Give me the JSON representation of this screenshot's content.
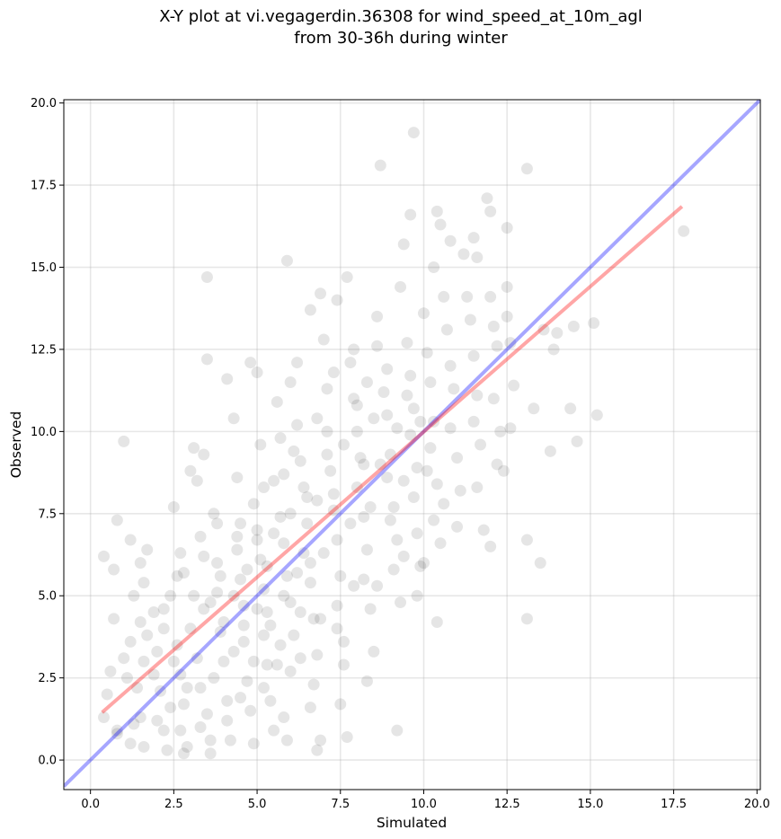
{
  "chart_data": {
    "type": "scatter",
    "title": "X-Y plot at vi.vegagerdin.36308 for wind_speed_at_10m_agl",
    "subtitle": "from 30-36h during winter",
    "xlabel": "Simulated",
    "ylabel": "Observed",
    "xlim": [
      -0.8,
      20.1
    ],
    "ylim": [
      -0.9,
      20.1
    ],
    "x_ticks": [
      "0.0",
      "2.5",
      "5.0",
      "7.5",
      "10.0",
      "12.5",
      "15.0",
      "17.5",
      "20.0"
    ],
    "y_ticks": [
      "0.0",
      "2.5",
      "5.0",
      "7.5",
      "10.0",
      "12.5",
      "15.0",
      "17.5",
      "20.0"
    ],
    "grid": true,
    "point_color": "#000000",
    "point_alpha": 0.1,
    "points": [
      [
        0.4,
        6.2
      ],
      [
        0.7,
        5.8
      ],
      [
        0.8,
        7.3
      ],
      [
        0.7,
        4.3
      ],
      [
        0.6,
        2.7
      ],
      [
        0.5,
        2.0
      ],
      [
        0.4,
        1.3
      ],
      [
        0.8,
        0.9
      ],
      [
        0.8,
        0.8
      ],
      [
        1.0,
        3.1
      ],
      [
        1.1,
        2.5
      ],
      [
        1.2,
        3.6
      ],
      [
        1.3,
        1.1
      ],
      [
        1.2,
        0.5
      ],
      [
        1.5,
        1.3
      ],
      [
        1.6,
        0.4
      ],
      [
        1.4,
        2.2
      ],
      [
        1.6,
        3.0
      ],
      [
        1.7,
        3.8
      ],
      [
        1.5,
        4.2
      ],
      [
        1.3,
        5.0
      ],
      [
        1.6,
        5.4
      ],
      [
        1.7,
        6.4
      ],
      [
        1.5,
        6.0
      ],
      [
        1.2,
        6.7
      ],
      [
        1.0,
        9.7
      ],
      [
        1.9,
        4.5
      ],
      [
        2.0,
        3.3
      ],
      [
        2.1,
        2.1
      ],
      [
        2.0,
        1.2
      ],
      [
        2.2,
        0.9
      ],
      [
        2.3,
        0.3
      ],
      [
        2.4,
        5.0
      ],
      [
        2.5,
        7.7
      ],
      [
        2.2,
        4.0
      ],
      [
        2.6,
        3.5
      ],
      [
        2.7,
        2.6
      ],
      [
        2.8,
        1.7
      ],
      [
        2.7,
        0.9
      ],
      [
        2.8,
        0.2
      ],
      [
        2.9,
        0.4
      ],
      [
        2.8,
        5.7
      ],
      [
        2.7,
        6.3
      ],
      [
        3.0,
        8.8
      ],
      [
        3.1,
        9.5
      ],
      [
        3.2,
        8.5
      ],
      [
        3.3,
        6.8
      ],
      [
        3.4,
        4.6
      ],
      [
        3.2,
        3.1
      ],
      [
        3.3,
        2.2
      ],
      [
        3.5,
        1.4
      ],
      [
        3.6,
        0.6
      ],
      [
        3.6,
        0.2
      ],
      [
        3.4,
        9.3
      ],
      [
        3.5,
        12.2
      ],
      [
        3.5,
        14.7
      ],
      [
        3.7,
        7.5
      ],
      [
        3.8,
        6.0
      ],
      [
        3.8,
        5.1
      ],
      [
        3.9,
        3.9
      ],
      [
        4.0,
        3.0
      ],
      [
        4.1,
        1.8
      ],
      [
        4.2,
        0.6
      ],
      [
        4.1,
        11.6
      ],
      [
        4.3,
        10.4
      ],
      [
        4.4,
        8.6
      ],
      [
        4.5,
        7.2
      ],
      [
        4.4,
        6.4
      ],
      [
        4.5,
        5.5
      ],
      [
        4.6,
        4.7
      ],
      [
        4.6,
        3.6
      ],
      [
        4.7,
        2.4
      ],
      [
        4.8,
        1.5
      ],
      [
        4.9,
        0.5
      ],
      [
        4.8,
        12.1
      ],
      [
        5.0,
        11.8
      ],
      [
        5.1,
        9.6
      ],
      [
        5.2,
        8.3
      ],
      [
        5.0,
        7.0
      ],
      [
        5.1,
        6.1
      ],
      [
        5.2,
        5.2
      ],
      [
        5.3,
        4.5
      ],
      [
        5.2,
        3.8
      ],
      [
        5.3,
        2.9
      ],
      [
        5.4,
        1.8
      ],
      [
        5.5,
        0.9
      ],
      [
        5.6,
        10.9
      ],
      [
        5.7,
        9.8
      ],
      [
        5.8,
        8.7
      ],
      [
        5.7,
        7.4
      ],
      [
        5.8,
        6.6
      ],
      [
        5.9,
        5.6
      ],
      [
        6.0,
        4.8
      ],
      [
        6.1,
        3.8
      ],
      [
        6.0,
        2.7
      ],
      [
        5.8,
        1.3
      ],
      [
        5.9,
        0.6
      ],
      [
        5.9,
        15.2
      ],
      [
        6.0,
        11.5
      ],
      [
        6.2,
        12.1
      ],
      [
        6.2,
        10.2
      ],
      [
        6.3,
        9.1
      ],
      [
        6.4,
        8.3
      ],
      [
        6.5,
        7.2
      ],
      [
        6.4,
        6.3
      ],
      [
        6.6,
        5.4
      ],
      [
        6.7,
        4.3
      ],
      [
        6.8,
        3.2
      ],
      [
        6.7,
        2.3
      ],
      [
        6.6,
        1.6
      ],
      [
        6.9,
        0.6
      ],
      [
        6.8,
        0.3
      ],
      [
        6.6,
        13.7
      ],
      [
        6.9,
        14.2
      ],
      [
        7.0,
        12.8
      ],
      [
        7.1,
        11.3
      ],
      [
        7.1,
        10.0
      ],
      [
        7.2,
        8.8
      ],
      [
        7.3,
        7.6
      ],
      [
        7.4,
        6.7
      ],
      [
        7.5,
        5.6
      ],
      [
        7.4,
        4.7
      ],
      [
        7.6,
        3.6
      ],
      [
        7.6,
        2.9
      ],
      [
        7.5,
        1.7
      ],
      [
        7.7,
        0.7
      ],
      [
        7.4,
        14.0
      ],
      [
        7.7,
        14.7
      ],
      [
        7.8,
        12.1
      ],
      [
        7.9,
        11.0
      ],
      [
        8.0,
        10.0
      ],
      [
        8.1,
        9.2
      ],
      [
        8.0,
        8.3
      ],
      [
        8.2,
        7.4
      ],
      [
        8.3,
        6.4
      ],
      [
        8.2,
        5.5
      ],
      [
        8.4,
        4.6
      ],
      [
        8.5,
        3.3
      ],
      [
        8.3,
        2.4
      ],
      [
        8.6,
        13.5
      ],
      [
        8.7,
        18.1
      ],
      [
        8.6,
        12.6
      ],
      [
        8.8,
        11.2
      ],
      [
        8.9,
        10.5
      ],
      [
        9.0,
        9.3
      ],
      [
        8.9,
        8.6
      ],
      [
        9.1,
        7.7
      ],
      [
        9.2,
        6.7
      ],
      [
        9.1,
        5.8
      ],
      [
        9.3,
        4.8
      ],
      [
        9.2,
        0.9
      ],
      [
        9.3,
        14.4
      ],
      [
        9.4,
        15.7
      ],
      [
        9.5,
        12.7
      ],
      [
        9.6,
        11.7
      ],
      [
        9.7,
        10.7
      ],
      [
        9.6,
        9.9
      ],
      [
        9.8,
        8.9
      ],
      [
        9.7,
        8.0
      ],
      [
        9.8,
        6.9
      ],
      [
        9.9,
        5.9
      ],
      [
        9.8,
        5.0
      ],
      [
        9.6,
        16.6
      ],
      [
        9.7,
        19.1
      ],
      [
        10.0,
        13.6
      ],
      [
        10.1,
        12.4
      ],
      [
        10.2,
        11.5
      ],
      [
        10.3,
        10.3
      ],
      [
        10.2,
        9.5
      ],
      [
        10.4,
        8.4
      ],
      [
        10.3,
        7.3
      ],
      [
        10.5,
        6.6
      ],
      [
        10.4,
        4.2
      ],
      [
        10.3,
        15.0
      ],
      [
        10.4,
        16.7
      ],
      [
        10.5,
        16.3
      ],
      [
        10.6,
        14.1
      ],
      [
        10.7,
        13.1
      ],
      [
        10.8,
        12.0
      ],
      [
        10.9,
        11.3
      ],
      [
        10.8,
        10.1
      ],
      [
        11.0,
        9.2
      ],
      [
        11.1,
        8.2
      ],
      [
        11.0,
        7.1
      ],
      [
        10.8,
        15.8
      ],
      [
        11.2,
        15.4
      ],
      [
        11.3,
        14.1
      ],
      [
        11.4,
        13.4
      ],
      [
        11.5,
        12.3
      ],
      [
        11.6,
        11.1
      ],
      [
        11.5,
        10.3
      ],
      [
        11.7,
        9.6
      ],
      [
        11.6,
        8.3
      ],
      [
        11.8,
        7.0
      ],
      [
        11.5,
        15.9
      ],
      [
        11.6,
        15.3
      ],
      [
        11.9,
        17.1
      ],
      [
        12.0,
        16.7
      ],
      [
        12.0,
        14.1
      ],
      [
        12.1,
        13.2
      ],
      [
        12.2,
        12.6
      ],
      [
        12.1,
        11.0
      ],
      [
        12.3,
        10.0
      ],
      [
        12.2,
        9.0
      ],
      [
        12.0,
        6.5
      ],
      [
        12.5,
        16.2
      ],
      [
        12.5,
        14.4
      ],
      [
        12.5,
        13.5
      ],
      [
        12.6,
        12.7
      ],
      [
        12.7,
        11.4
      ],
      [
        12.6,
        10.1
      ],
      [
        12.4,
        8.8
      ],
      [
        13.1,
        18.0
      ],
      [
        13.1,
        6.7
      ],
      [
        13.1,
        4.3
      ],
      [
        13.3,
        10.7
      ],
      [
        13.5,
        6.0
      ],
      [
        13.6,
        13.1
      ],
      [
        13.8,
        9.4
      ],
      [
        14.0,
        13.0
      ],
      [
        13.9,
        12.5
      ],
      [
        14.4,
        10.7
      ],
      [
        14.6,
        9.7
      ],
      [
        14.5,
        13.2
      ],
      [
        15.1,
        13.3
      ],
      [
        15.2,
        10.5
      ],
      [
        17.8,
        16.1
      ],
      [
        3.0,
        4.0
      ],
      [
        3.1,
        5.0
      ],
      [
        3.6,
        4.8
      ],
      [
        3.9,
        5.6
      ],
      [
        4.0,
        4.2
      ],
      [
        4.3,
        5.0
      ],
      [
        4.3,
        3.3
      ],
      [
        4.6,
        4.1
      ],
      [
        4.7,
        5.8
      ],
      [
        4.9,
        3.0
      ],
      [
        5.0,
        4.6
      ],
      [
        5.0,
        6.7
      ],
      [
        5.3,
        5.9
      ],
      [
        5.4,
        4.1
      ],
      [
        5.5,
        6.9
      ],
      [
        5.7,
        3.5
      ],
      [
        5.8,
        5.0
      ],
      [
        6.0,
        7.5
      ],
      [
        6.2,
        5.7
      ],
      [
        6.3,
        4.5
      ],
      [
        6.5,
        8.0
      ],
      [
        6.6,
        6.0
      ],
      [
        6.8,
        7.9
      ],
      [
        7.0,
        6.3
      ],
      [
        7.1,
        9.3
      ],
      [
        7.3,
        8.1
      ],
      [
        7.6,
        9.6
      ],
      [
        7.8,
        7.2
      ],
      [
        8.0,
        10.8
      ],
      [
        8.2,
        9.0
      ],
      [
        8.4,
        7.7
      ],
      [
        8.5,
        10.4
      ],
      [
        8.7,
        9.0
      ],
      [
        8.9,
        11.9
      ],
      [
        9.0,
        7.3
      ],
      [
        9.2,
        10.1
      ],
      [
        9.4,
        8.5
      ],
      [
        9.5,
        11.1
      ],
      [
        9.9,
        10.3
      ],
      [
        10.1,
        8.8
      ],
      [
        2.4,
        1.6
      ],
      [
        2.5,
        3.0
      ],
      [
        2.9,
        2.2
      ],
      [
        3.3,
        1.0
      ],
      [
        3.7,
        2.5
      ],
      [
        4.1,
        1.2
      ],
      [
        4.5,
        1.9
      ],
      [
        1.9,
        2.6
      ],
      [
        2.2,
        4.6
      ],
      [
        2.6,
        5.6
      ],
      [
        3.4,
        6.2
      ],
      [
        3.8,
        7.2
      ],
      [
        4.4,
        6.8
      ],
      [
        4.9,
        7.8
      ],
      [
        5.5,
        8.5
      ],
      [
        6.1,
        9.4
      ],
      [
        6.8,
        10.4
      ],
      [
        7.3,
        11.8
      ],
      [
        7.9,
        12.5
      ],
      [
        8.3,
        11.5
      ],
      [
        5.2,
        2.2
      ],
      [
        5.6,
        2.9
      ],
      [
        6.3,
        3.1
      ],
      [
        6.9,
        4.3
      ],
      [
        7.4,
        4.0
      ],
      [
        7.9,
        5.3
      ],
      [
        8.6,
        5.3
      ],
      [
        9.4,
        6.2
      ],
      [
        10.0,
        6.0
      ],
      [
        10.6,
        7.8
      ]
    ],
    "lines": [
      {
        "color": "#0000ff",
        "alpha": 0.35,
        "x": [
          -0.8,
          20.1
        ],
        "y": [
          -0.8,
          20.1
        ]
      },
      {
        "color": "#ff0000",
        "alpha": 0.35,
        "x": [
          0.35,
          17.75
        ],
        "y": [
          1.45,
          16.85
        ]
      }
    ]
  }
}
